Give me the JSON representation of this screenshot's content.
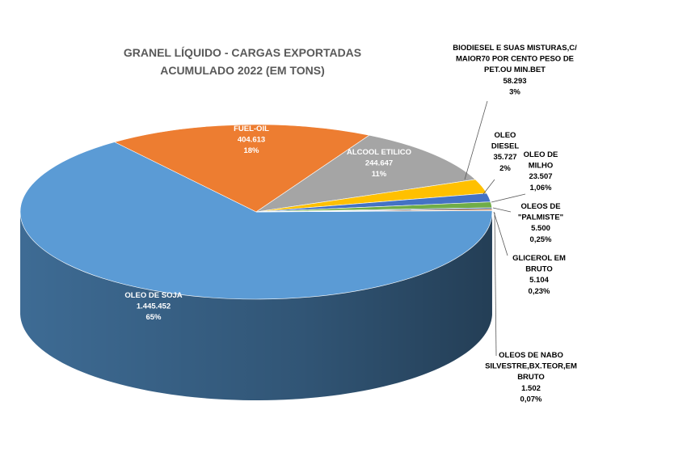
{
  "chart_data": {
    "type": "pie",
    "title_lines": [
      "GRANEL LÍQUIDO - CARGAS EXPORTADAS",
      "ACUMULADO 2022 (EM TONS)"
    ],
    "slices": [
      {
        "label_lines": [
          "OLEO DE SOJA"
        ],
        "value_text": "1.445.452",
        "pct_text": "65%",
        "value": 1445452,
        "color": "#5b9bd5",
        "side": "#41719c"
      },
      {
        "label_lines": [
          "FUEL-OIL"
        ],
        "value_text": "404.613",
        "pct_text": "18%",
        "value": 404613,
        "color": "#ed7d31",
        "side": "#ae5a21"
      },
      {
        "label_lines": [
          "ALCOOL ETILICO"
        ],
        "value_text": "244.647",
        "pct_text": "11%",
        "value": 244647,
        "color": "#a5a5a5",
        "side": "#7a7a7a"
      },
      {
        "label_lines": [
          "BIODIESEL E SUAS MISTURAS,C/",
          "MAIOR70 POR CENTO PESO DE",
          "PET.OU MIN.BET"
        ],
        "value_text": "58.293",
        "pct_text": "3%",
        "value": 58293,
        "color": "#ffc000",
        "side": "#bc8c00"
      },
      {
        "label_lines": [
          "OLEO",
          "DIESEL"
        ],
        "value_text": "35.727",
        "pct_text": "2%",
        "value": 35727,
        "color": "#4472c4",
        "side": "#2f528f"
      },
      {
        "label_lines": [
          "OLEO DE",
          "MILHO"
        ],
        "value_text": "23.507",
        "pct_text": "1,06%",
        "value": 23507,
        "color": "#70ad47",
        "side": "#507e32"
      },
      {
        "label_lines": [
          "OLEOS DE",
          "\"PALMISTE\""
        ],
        "value_text": "5.500",
        "pct_text": "0,25%",
        "value": 5500,
        "color": "#264478",
        "side": "#1a2f55"
      },
      {
        "label_lines": [
          "GLICEROL EM",
          "BRUTO"
        ],
        "value_text": "5.104",
        "pct_text": "0,23%",
        "value": 5104,
        "color": "#9e480e",
        "side": "#70320a"
      },
      {
        "label_lines": [
          "OLEOS DE NABO",
          "SILVESTRE,BX.TEOR,EM",
          "BRUTO"
        ],
        "value_text": "1.502",
        "pct_text": "0,07%",
        "value": 1502,
        "color": "#636363",
        "side": "#404040"
      }
    ]
  }
}
